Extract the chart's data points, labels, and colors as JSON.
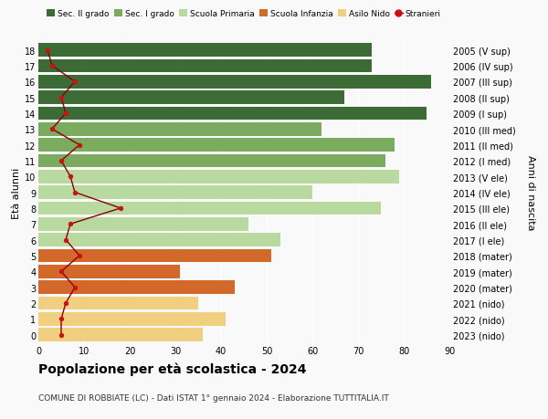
{
  "ages": [
    18,
    17,
    16,
    15,
    14,
    13,
    12,
    11,
    10,
    9,
    8,
    7,
    6,
    5,
    4,
    3,
    2,
    1,
    0
  ],
  "right_labels": [
    "2005 (V sup)",
    "2006 (IV sup)",
    "2007 (III sup)",
    "2008 (II sup)",
    "2009 (I sup)",
    "2010 (III med)",
    "2011 (II med)",
    "2012 (I med)",
    "2013 (V ele)",
    "2014 (IV ele)",
    "2015 (III ele)",
    "2016 (II ele)",
    "2017 (I ele)",
    "2018 (mater)",
    "2019 (mater)",
    "2020 (mater)",
    "2021 (nido)",
    "2022 (nido)",
    "2023 (nido)"
  ],
  "bar_values": [
    73,
    73,
    86,
    67,
    85,
    62,
    78,
    76,
    79,
    60,
    75,
    46,
    53,
    51,
    31,
    43,
    35,
    41,
    36
  ],
  "bar_colors": [
    "#3d6b35",
    "#3d6b35",
    "#3d6b35",
    "#3d6b35",
    "#3d6b35",
    "#7aab5e",
    "#7aab5e",
    "#7aab5e",
    "#b8d9a0",
    "#b8d9a0",
    "#b8d9a0",
    "#b8d9a0",
    "#b8d9a0",
    "#d2692a",
    "#d2692a",
    "#d2692a",
    "#f0d080",
    "#f0d080",
    "#f0d080"
  ],
  "stranieri_values": [
    2,
    3,
    8,
    5,
    6,
    3,
    9,
    5,
    7,
    8,
    18,
    7,
    6,
    9,
    5,
    8,
    6,
    5,
    5
  ],
  "legend_labels": [
    "Sec. II grado",
    "Sec. I grado",
    "Scuola Primaria",
    "Scuola Infanzia",
    "Asilo Nido",
    "Stranieri"
  ],
  "legend_colors": [
    "#3d6b35",
    "#7aab5e",
    "#b8d9a0",
    "#d2692a",
    "#f0d080",
    "#cc0000"
  ],
  "title": "Popolazione per età scolastica - 2024",
  "subtitle": "COMUNE DI ROBBIATE (LC) - Dati ISTAT 1° gennaio 2024 - Elaborazione TUTTITALIA.IT",
  "ylabel_left": "Età alunni",
  "ylabel_right": "Anni di nascita",
  "xlim": [
    0,
    90
  ],
  "xticks": [
    0,
    10,
    20,
    30,
    40,
    50,
    60,
    70,
    80,
    90
  ],
  "background_color": "#f9f9f9",
  "bar_height": 0.85,
  "stranieri_line_color": "#8b0000",
  "stranieri_dot_color": "#cc1111",
  "grid_color": "#ffffff",
  "bar_edge_color": "none"
}
